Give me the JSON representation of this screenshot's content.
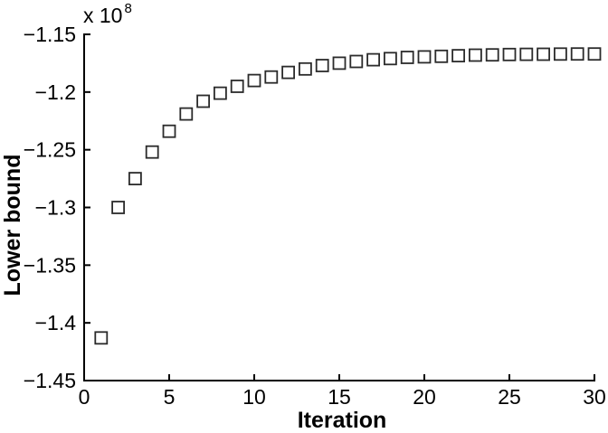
{
  "figure": {
    "background": "#ffffff",
    "colors": {
      "axis": "#000000",
      "text": "#000000",
      "marker_edge": "#2b2b2b",
      "marker_fill": "#ffffff"
    }
  },
  "chart_data": {
    "type": "scatter",
    "title": "",
    "xlabel": "Iteration",
    "ylabel": "Lower bound",
    "offset": {
      "text": "x 10",
      "exponent": "8"
    },
    "marker_shape": "open-square",
    "grid": false,
    "xlim": [
      0,
      30
    ],
    "ylim": [
      -1.45,
      -1.15
    ],
    "xticks": [
      0,
      5,
      10,
      15,
      20,
      25,
      30
    ],
    "xtick_labels": [
      "0",
      "5",
      "10",
      "15",
      "20",
      "25",
      "30"
    ],
    "yticks": [
      -1.45,
      -1.4,
      -1.35,
      -1.3,
      -1.25,
      -1.2,
      -1.15
    ],
    "ytick_labels": [
      "−1.45",
      "−1.4",
      "−1.35",
      "−1.3",
      "−1.25",
      "−1.2",
      "−1.15"
    ],
    "y_units_note": "y values are in units of 10^8 as shown by the axis offset label",
    "x": [
      1,
      2,
      3,
      4,
      5,
      6,
      7,
      8,
      9,
      10,
      11,
      12,
      13,
      14,
      15,
      16,
      17,
      18,
      19,
      20,
      21,
      22,
      23,
      24,
      25,
      26,
      27,
      28,
      29,
      30
    ],
    "y": [
      -1.413,
      -1.3,
      -1.275,
      -1.252,
      -1.234,
      -1.219,
      -1.208,
      -1.201,
      -1.195,
      -1.19,
      -1.187,
      -1.183,
      -1.18,
      -1.177,
      -1.175,
      -1.1735,
      -1.172,
      -1.171,
      -1.17,
      -1.1695,
      -1.169,
      -1.1685,
      -1.168,
      -1.1678,
      -1.1675,
      -1.1673,
      -1.1672,
      -1.1671,
      -1.167,
      -1.167
    ]
  }
}
